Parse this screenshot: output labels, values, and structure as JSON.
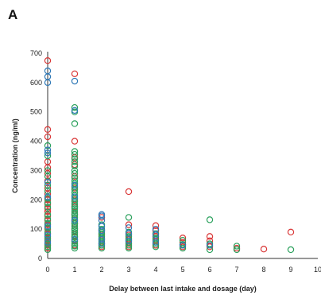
{
  "panel_label": "A",
  "chart_data": {
    "type": "scatter",
    "title": "",
    "xlabel": "Delay between last intake and dosage (day)",
    "ylabel": "Concentration (ng/ml)",
    "xlim": [
      0,
      10
    ],
    "ylim": [
      0,
      700
    ],
    "xticks": [
      "0",
      "1",
      "2",
      "3",
      "4",
      "5",
      "6",
      "7",
      "8",
      "9",
      "10"
    ],
    "yticks": [
      "0",
      "100",
      "200",
      "300",
      "400",
      "500",
      "600",
      "700"
    ],
    "grid": false,
    "legend": "none",
    "series": [
      {
        "color": "#d93636",
        "points": [
          [
            0,
            675
          ],
          [
            0,
            440
          ],
          [
            0,
            415
          ],
          [
            0,
            330
          ],
          [
            0,
            310
          ],
          [
            0,
            290
          ],
          [
            0,
            265
          ],
          [
            0,
            240
          ],
          [
            0,
            220
          ],
          [
            0,
            200
          ],
          [
            0,
            185
          ],
          [
            0,
            170
          ],
          [
            0,
            160
          ],
          [
            0,
            145
          ],
          [
            0,
            130
          ],
          [
            0,
            115
          ],
          [
            0,
            100
          ],
          [
            0,
            85
          ],
          [
            0,
            70
          ],
          [
            0,
            60
          ],
          [
            0,
            45
          ],
          [
            0,
            35
          ],
          [
            1,
            630
          ],
          [
            1,
            400
          ],
          [
            1,
            345
          ],
          [
            1,
            320
          ],
          [
            1,
            280
          ],
          [
            1,
            240
          ],
          [
            1,
            200
          ],
          [
            1,
            175
          ],
          [
            1,
            150
          ],
          [
            1,
            120
          ],
          [
            1,
            100
          ],
          [
            1,
            75
          ],
          [
            1,
            60
          ],
          [
            1,
            45
          ],
          [
            2,
            140
          ],
          [
            2,
            95
          ],
          [
            2,
            80
          ],
          [
            2,
            65
          ],
          [
            2,
            50
          ],
          [
            2,
            40
          ],
          [
            3,
            228
          ],
          [
            3,
            115
          ],
          [
            3,
            80
          ],
          [
            3,
            65
          ],
          [
            3,
            50
          ],
          [
            3,
            40
          ],
          [
            4,
            112
          ],
          [
            4,
            95
          ],
          [
            4,
            75
          ],
          [
            4,
            60
          ],
          [
            4,
            45
          ],
          [
            5,
            70
          ],
          [
            5,
            55
          ],
          [
            5,
            40
          ],
          [
            6,
            75
          ],
          [
            6,
            60
          ],
          [
            6,
            40
          ],
          [
            7,
            35
          ],
          [
            8,
            32
          ],
          [
            9,
            90
          ]
        ]
      },
      {
        "color": "#2aa05c",
        "points": [
          [
            0,
            385
          ],
          [
            0,
            350
          ],
          [
            0,
            300
          ],
          [
            0,
            280
          ],
          [
            0,
            250
          ],
          [
            0,
            230
          ],
          [
            0,
            205
          ],
          [
            0,
            190
          ],
          [
            0,
            175
          ],
          [
            0,
            150
          ],
          [
            0,
            135
          ],
          [
            0,
            120
          ],
          [
            0,
            105
          ],
          [
            0,
            90
          ],
          [
            0,
            75
          ],
          [
            0,
            65
          ],
          [
            0,
            50
          ],
          [
            0,
            40
          ],
          [
            0,
            30
          ],
          [
            1,
            515
          ],
          [
            1,
            500
          ],
          [
            1,
            460
          ],
          [
            1,
            365
          ],
          [
            1,
            355
          ],
          [
            1,
            340
          ],
          [
            1,
            330
          ],
          [
            1,
            315
          ],
          [
            1,
            300
          ],
          [
            1,
            290
          ],
          [
            1,
            275
          ],
          [
            1,
            265
          ],
          [
            1,
            255
          ],
          [
            1,
            245
          ],
          [
            1,
            235
          ],
          [
            1,
            225
          ],
          [
            1,
            215
          ],
          [
            1,
            205
          ],
          [
            1,
            195
          ],
          [
            1,
            185
          ],
          [
            1,
            178
          ],
          [
            1,
            170
          ],
          [
            1,
            162
          ],
          [
            1,
            155
          ],
          [
            1,
            148
          ],
          [
            1,
            140
          ],
          [
            1,
            132
          ],
          [
            1,
            125
          ],
          [
            1,
            118
          ],
          [
            1,
            110
          ],
          [
            1,
            102
          ],
          [
            1,
            95
          ],
          [
            1,
            88
          ],
          [
            1,
            80
          ],
          [
            1,
            72
          ],
          [
            1,
            65
          ],
          [
            1,
            58
          ],
          [
            1,
            50
          ],
          [
            1,
            42
          ],
          [
            1,
            35
          ],
          [
            2,
            115
          ],
          [
            2,
            100
          ],
          [
            2,
            90
          ],
          [
            2,
            85
          ],
          [
            2,
            75
          ],
          [
            2,
            70
          ],
          [
            2,
            60
          ],
          [
            2,
            55
          ],
          [
            2,
            45
          ],
          [
            2,
            35
          ],
          [
            3,
            140
          ],
          [
            3,
            90
          ],
          [
            3,
            75
          ],
          [
            3,
            70
          ],
          [
            3,
            60
          ],
          [
            3,
            55
          ],
          [
            3,
            45
          ],
          [
            3,
            35
          ],
          [
            4,
            85
          ],
          [
            4,
            70
          ],
          [
            4,
            65
          ],
          [
            4,
            50
          ],
          [
            4,
            40
          ],
          [
            5,
            62
          ],
          [
            5,
            48
          ],
          [
            5,
            35
          ],
          [
            6,
            132
          ],
          [
            6,
            50
          ],
          [
            6,
            30
          ],
          [
            7,
            42
          ],
          [
            7,
            30
          ],
          [
            9,
            30
          ]
        ]
      },
      {
        "color": "#2f79b7",
        "points": [
          [
            0,
            640
          ],
          [
            0,
            620
          ],
          [
            0,
            600
          ],
          [
            0,
            370
          ],
          [
            0,
            360
          ],
          [
            0,
            260
          ],
          [
            0,
            210
          ],
          [
            0,
            110
          ],
          [
            0,
            80
          ],
          [
            0,
            55
          ],
          [
            1,
            605
          ],
          [
            1,
            505
          ],
          [
            1,
            250
          ],
          [
            1,
            210
          ],
          [
            1,
            130
          ],
          [
            1,
            65
          ],
          [
            2,
            150
          ],
          [
            2,
            145
          ],
          [
            2,
            130
          ],
          [
            2,
            110
          ],
          [
            2,
            95
          ],
          [
            2,
            65
          ],
          [
            2,
            50
          ],
          [
            3,
            105
          ],
          [
            3,
            85
          ],
          [
            3,
            60
          ],
          [
            4,
            100
          ],
          [
            4,
            80
          ],
          [
            4,
            55
          ],
          [
            5,
            45
          ],
          [
            6,
            45
          ]
        ]
      }
    ]
  }
}
